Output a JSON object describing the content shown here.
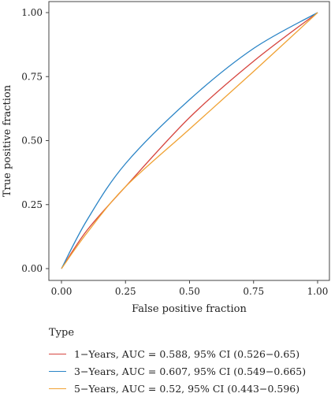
{
  "chart_data": {
    "type": "line",
    "xlabel": "False positive fraction",
    "ylabel": "True positive fraction",
    "xlim": [
      0,
      1
    ],
    "ylim": [
      0,
      1
    ],
    "x_ticks": [
      "0.00",
      "0.25",
      "0.50",
      "0.75",
      "1.00"
    ],
    "y_ticks": [
      "0.00",
      "0.25",
      "0.50",
      "0.75",
      "1.00"
    ],
    "grid": false,
    "legend_position": "bottom",
    "legend_title": "Type",
    "series": [
      {
        "name": "1−Years, AUC = 0.588, 95% CI (0.526−0.65)",
        "color": "#d6453f",
        "points": [
          [
            0,
            0
          ],
          [
            0.1,
            0.15
          ],
          [
            0.25,
            0.32
          ],
          [
            0.5,
            0.59
          ],
          [
            0.75,
            0.81
          ],
          [
            1,
            1
          ]
        ]
      },
      {
        "name": "3−Years, AUC = 0.607, 95% CI (0.549−0.665)",
        "color": "#2a84c6",
        "points": [
          [
            0,
            0
          ],
          [
            0.1,
            0.19
          ],
          [
            0.25,
            0.41
          ],
          [
            0.5,
            0.66
          ],
          [
            0.75,
            0.86
          ],
          [
            1,
            1
          ]
        ]
      },
      {
        "name": "5−Years, AUC = 0.52, 95% CI (0.443−0.596)",
        "color": "#f0a233",
        "points": [
          [
            0,
            0
          ],
          [
            0.1,
            0.14
          ],
          [
            0.25,
            0.32
          ],
          [
            0.5,
            0.545
          ],
          [
            0.75,
            0.77
          ],
          [
            1,
            1
          ]
        ]
      }
    ]
  }
}
